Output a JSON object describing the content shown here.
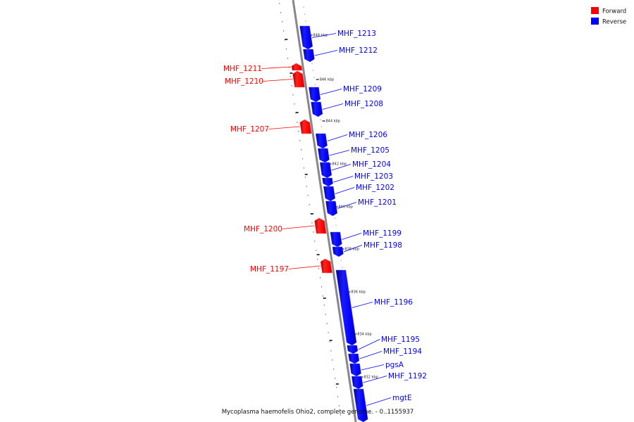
{
  "colors": {
    "forward": "#ff0000",
    "reverse": "#0000ff",
    "backbone": "#888888"
  },
  "legend": [
    {
      "label": "Forward",
      "color": "#ff0000"
    },
    {
      "label": "Reverse",
      "color": "#0000ff"
    }
  ],
  "caption": "Mycoplasma haemofelis Ohio2, complete genome. - 0..1155937",
  "ticks": [
    "848 kbp",
    "846 kbp",
    "844 kbp",
    "842 kbp",
    "840 kbp",
    "838 kbp",
    "836 kbp",
    "834 kbp",
    "832 kbp"
  ],
  "genes": [
    {
      "name": "MHF_1213",
      "strand": "reverse"
    },
    {
      "name": "MHF_1212",
      "strand": "reverse"
    },
    {
      "name": "MHF_1211",
      "strand": "forward"
    },
    {
      "name": "MHF_1210",
      "strand": "forward"
    },
    {
      "name": "MHF_1209",
      "strand": "reverse"
    },
    {
      "name": "MHF_1208",
      "strand": "reverse"
    },
    {
      "name": "MHF_1207",
      "strand": "forward"
    },
    {
      "name": "MHF_1206",
      "strand": "reverse"
    },
    {
      "name": "MHF_1205",
      "strand": "reverse"
    },
    {
      "name": "MHF_1204",
      "strand": "reverse"
    },
    {
      "name": "MHF_1203",
      "strand": "reverse"
    },
    {
      "name": "MHF_1202",
      "strand": "reverse"
    },
    {
      "name": "MHF_1201",
      "strand": "reverse"
    },
    {
      "name": "MHF_1200",
      "strand": "forward"
    },
    {
      "name": "MHF_1199",
      "strand": "reverse"
    },
    {
      "name": "MHF_1198",
      "strand": "reverse"
    },
    {
      "name": "MHF_1197",
      "strand": "forward"
    },
    {
      "name": "MHF_1196",
      "strand": "reverse"
    },
    {
      "name": "MHF_1195",
      "strand": "reverse"
    },
    {
      "name": "MHF_1194",
      "strand": "reverse"
    },
    {
      "name": "pgsA",
      "strand": "reverse"
    },
    {
      "name": "MHF_1192",
      "strand": "reverse"
    },
    {
      "name": "mgtE",
      "strand": "reverse"
    }
  ]
}
